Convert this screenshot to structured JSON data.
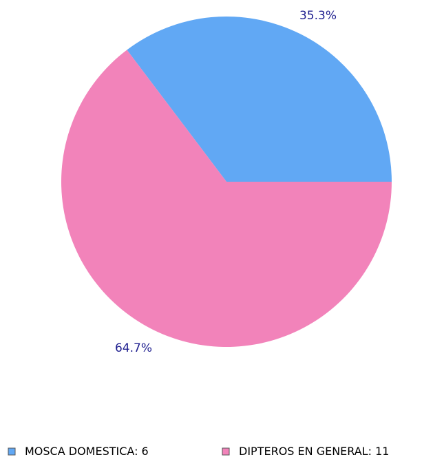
{
  "chart_data": {
    "type": "pie",
    "title": "",
    "start_angle_deg": 0,
    "direction": "counterclockwise",
    "slices": [
      {
        "name": "MOSCA DOMESTICA",
        "value": 6,
        "percent_label": "35.3%",
        "legend_label": "MOSCA DOMESTICA: 6",
        "color": "#61A8F4"
      },
      {
        "name": "DIPTEROS EN GENERAL",
        "value": 11,
        "percent_label": "64.7%",
        "legend_label": "DIPTEROS EN GENERAL: 11",
        "color": "#F283BA"
      }
    ],
    "label_color": "#1F1F8F",
    "legend_position": "bottom"
  }
}
